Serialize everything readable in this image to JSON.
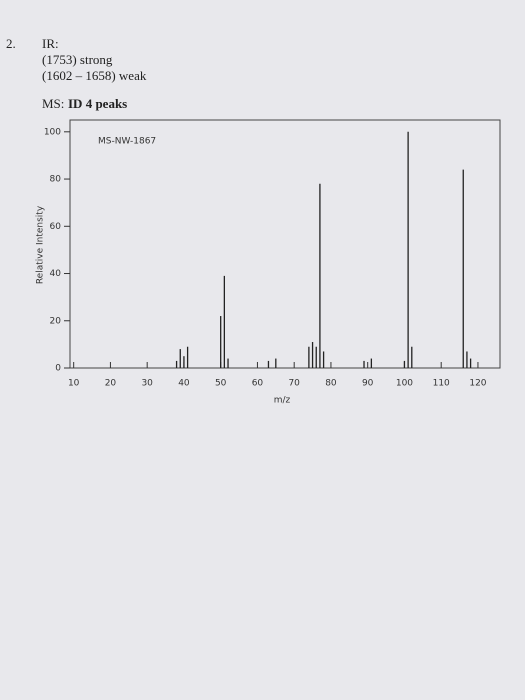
{
  "header": {
    "number": "2.",
    "ir_heading": "IR:",
    "ir_lines": [
      "(1753) strong",
      "(1602 – 1658) weak"
    ],
    "ms_heading": "MS:",
    "ms_note": "ID 4 peaks"
  },
  "chart_data": {
    "type": "stem",
    "code": "MS-NW-1867",
    "x_label": "m/z",
    "y_label": "Relative Intensity",
    "x": [
      38,
      39,
      40,
      41,
      50,
      51,
      52,
      63,
      65,
      74,
      75,
      76,
      77,
      78,
      89,
      91,
      100,
      101,
      102,
      116,
      117,
      118
    ],
    "values": [
      3,
      8,
      5,
      9,
      22,
      39,
      4,
      3,
      4,
      9,
      11,
      9,
      78,
      7,
      3,
      4,
      3,
      100,
      9,
      84,
      7,
      4
    ],
    "color": "#222222",
    "xlim": [
      9,
      126
    ],
    "xticks": [
      10,
      20,
      30,
      40,
      50,
      60,
      70,
      80,
      90,
      100,
      110,
      120
    ],
    "ylim": [
      0,
      105
    ],
    "yticks": [
      0,
      20,
      40,
      60,
      80,
      100
    ]
  }
}
